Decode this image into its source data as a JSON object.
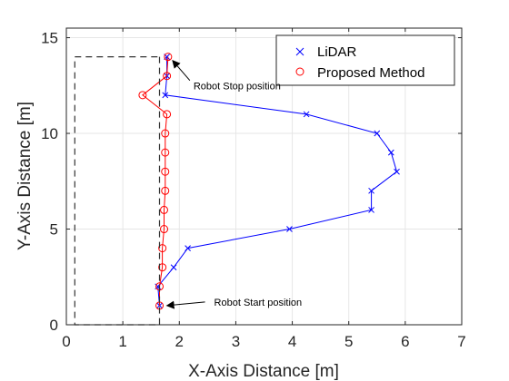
{
  "chart_data": {
    "type": "line",
    "xlabel": "X-Axis Distance [m]",
    "ylabel": "Y-Axis Distance [m]",
    "xlim": [
      0,
      7
    ],
    "ylim": [
      0,
      15.5
    ],
    "xticks": [
      0,
      1,
      2,
      3,
      4,
      5,
      6,
      7
    ],
    "yticks": [
      0,
      5,
      10,
      15
    ],
    "grid": true,
    "legend_position": "top-right",
    "series": [
      {
        "name": "LiDAR",
        "marker": "x",
        "color": "#0000ff",
        "x": [
          1.65,
          1.62,
          1.9,
          2.15,
          3.95,
          5.4,
          5.4,
          5.85,
          5.75,
          5.5,
          4.25,
          1.75,
          1.78,
          1.78
        ],
        "y": [
          1.0,
          2.0,
          3.0,
          4.0,
          5.0,
          6.0,
          7.0,
          8.0,
          9.0,
          10.0,
          11.0,
          12.0,
          13.0,
          14.0
        ]
      },
      {
        "name": "Proposed Method",
        "marker": "o",
        "color": "#ff0000",
        "x": [
          1.65,
          1.65,
          1.7,
          1.7,
          1.73,
          1.73,
          1.75,
          1.75,
          1.75,
          1.75,
          1.78,
          1.35,
          1.78,
          1.8
        ],
        "y": [
          1.0,
          2.0,
          3.0,
          4.0,
          5.0,
          6.0,
          7.0,
          8.0,
          9.0,
          10.0,
          11.0,
          12.0,
          13.0,
          14.0
        ]
      },
      {
        "name": "",
        "style": "dashed",
        "color": "#333333",
        "x": [
          1.65,
          1.65,
          0.15,
          0.15,
          1.65
        ],
        "y": [
          14.0,
          0.0,
          0.0,
          14.0,
          14.0
        ]
      }
    ],
    "annotations": [
      {
        "text": "Robot Stop position",
        "x": 1.8,
        "y": 14.0
      },
      {
        "text": "Robot Start position",
        "x": 1.65,
        "y": 1.0
      }
    ]
  },
  "colors": {
    "grid": "#e6e6e6",
    "axis": "#262626"
  }
}
